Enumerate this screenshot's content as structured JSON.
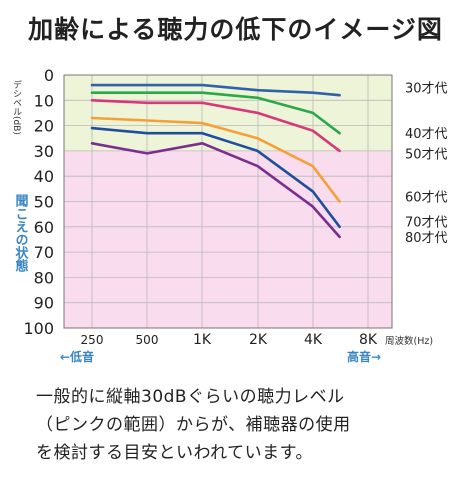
{
  "title": "加齢による聴力の低下のイメージ図",
  "caption": [
    "一般的に縦軸30dBぐらいの聴力レベル",
    "（ピンクの範囲）からが、補聴器の使用",
    "を検討する目安といわれています。"
  ],
  "chart_data": {
    "type": "line",
    "title": "加齢による聴力の低下のイメージ図",
    "x": [
      "250",
      "500",
      "1K",
      "2K",
      "4K",
      "8K"
    ],
    "xlabel": "周波数(Hz)",
    "ylabel": "デシベル(dB)",
    "ylim": [
      0,
      100
    ],
    "yticks": [
      "0",
      "10",
      "20",
      "30",
      "40",
      "50",
      "60",
      "70",
      "80",
      "90",
      "100"
    ],
    "y_reversed": true,
    "grid": true,
    "band_label": "聞こえの状態",
    "low_label": "←低音",
    "high_label": "高音→",
    "bands": [
      {
        "from": 0,
        "to": 30,
        "color": "#eef4d8"
      },
      {
        "from": 30,
        "to": 100,
        "color": "#f9dced"
      }
    ],
    "series": [
      {
        "name": "30才代",
        "color": "#2f62a8",
        "x": [
          250,
          500,
          1000,
          2000,
          4000,
          5600
        ],
        "values": [
          4,
          4,
          4,
          6,
          7,
          8
        ]
      },
      {
        "name": "40才代",
        "color": "#2aa84a",
        "x": [
          250,
          500,
          1000,
          2000,
          4000,
          5600
        ],
        "values": [
          7,
          7,
          7,
          9,
          15,
          23
        ]
      },
      {
        "name": "50才代",
        "color": "#d8387a",
        "x": [
          250,
          500,
          1000,
          2000,
          4000,
          5600
        ],
        "values": [
          10,
          11,
          11,
          15,
          22,
          30
        ]
      },
      {
        "name": "60才代",
        "color": "#f5a036",
        "x": [
          250,
          500,
          1000,
          2000,
          4000,
          5600
        ],
        "values": [
          17,
          18,
          19,
          25,
          36,
          50
        ]
      },
      {
        "name": "70才代",
        "color": "#1f4f9a",
        "x": [
          250,
          500,
          1000,
          2000,
          4000,
          5600
        ],
        "values": [
          21,
          23,
          23,
          30,
          46,
          60
        ]
      },
      {
        "name": "80才代",
        "color": "#7a2f8f",
        "x": [
          250,
          500,
          1000,
          2000,
          4000,
          5600
        ],
        "values": [
          27,
          31,
          27,
          36,
          52,
          64
        ]
      }
    ],
    "series_label_values": [
      5,
      23,
      31,
      48,
      58,
      64
    ]
  }
}
